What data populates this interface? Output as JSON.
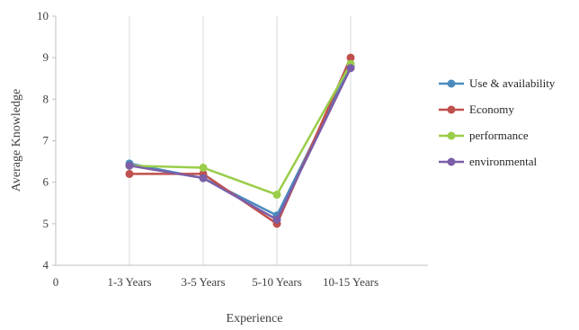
{
  "chart_data": {
    "type": "line",
    "title": "",
    "xlabel": "Experience",
    "ylabel": "Average Knowledge",
    "x_tick_labels": [
      "0",
      "1-3 Years",
      "3-5 Years",
      "5-10 Years",
      "10-15 Years"
    ],
    "categories": [
      "1-3 Years",
      "3-5 Years",
      "5-10 Years",
      "10-15 Years"
    ],
    "ylim": [
      4,
      10
    ],
    "y_ticks": [
      4,
      5,
      6,
      7,
      8,
      9,
      10
    ],
    "grid": "vertical",
    "legend_position": "right",
    "series": [
      {
        "name": "Use & availability",
        "color": "#4a8bbf",
        "values": [
          6.45,
          6.1,
          5.2,
          8.8
        ]
      },
      {
        "name": "Economy",
        "color": "#c0504d",
        "values": [
          6.2,
          6.2,
          5.0,
          9.0
        ]
      },
      {
        "name": "performance",
        "color": "#9acd4a",
        "values": [
          6.4,
          6.35,
          5.7,
          8.85
        ]
      },
      {
        "name": "environmental",
        "color": "#7b5ea7",
        "values": [
          6.4,
          6.1,
          5.1,
          8.75
        ]
      }
    ]
  }
}
